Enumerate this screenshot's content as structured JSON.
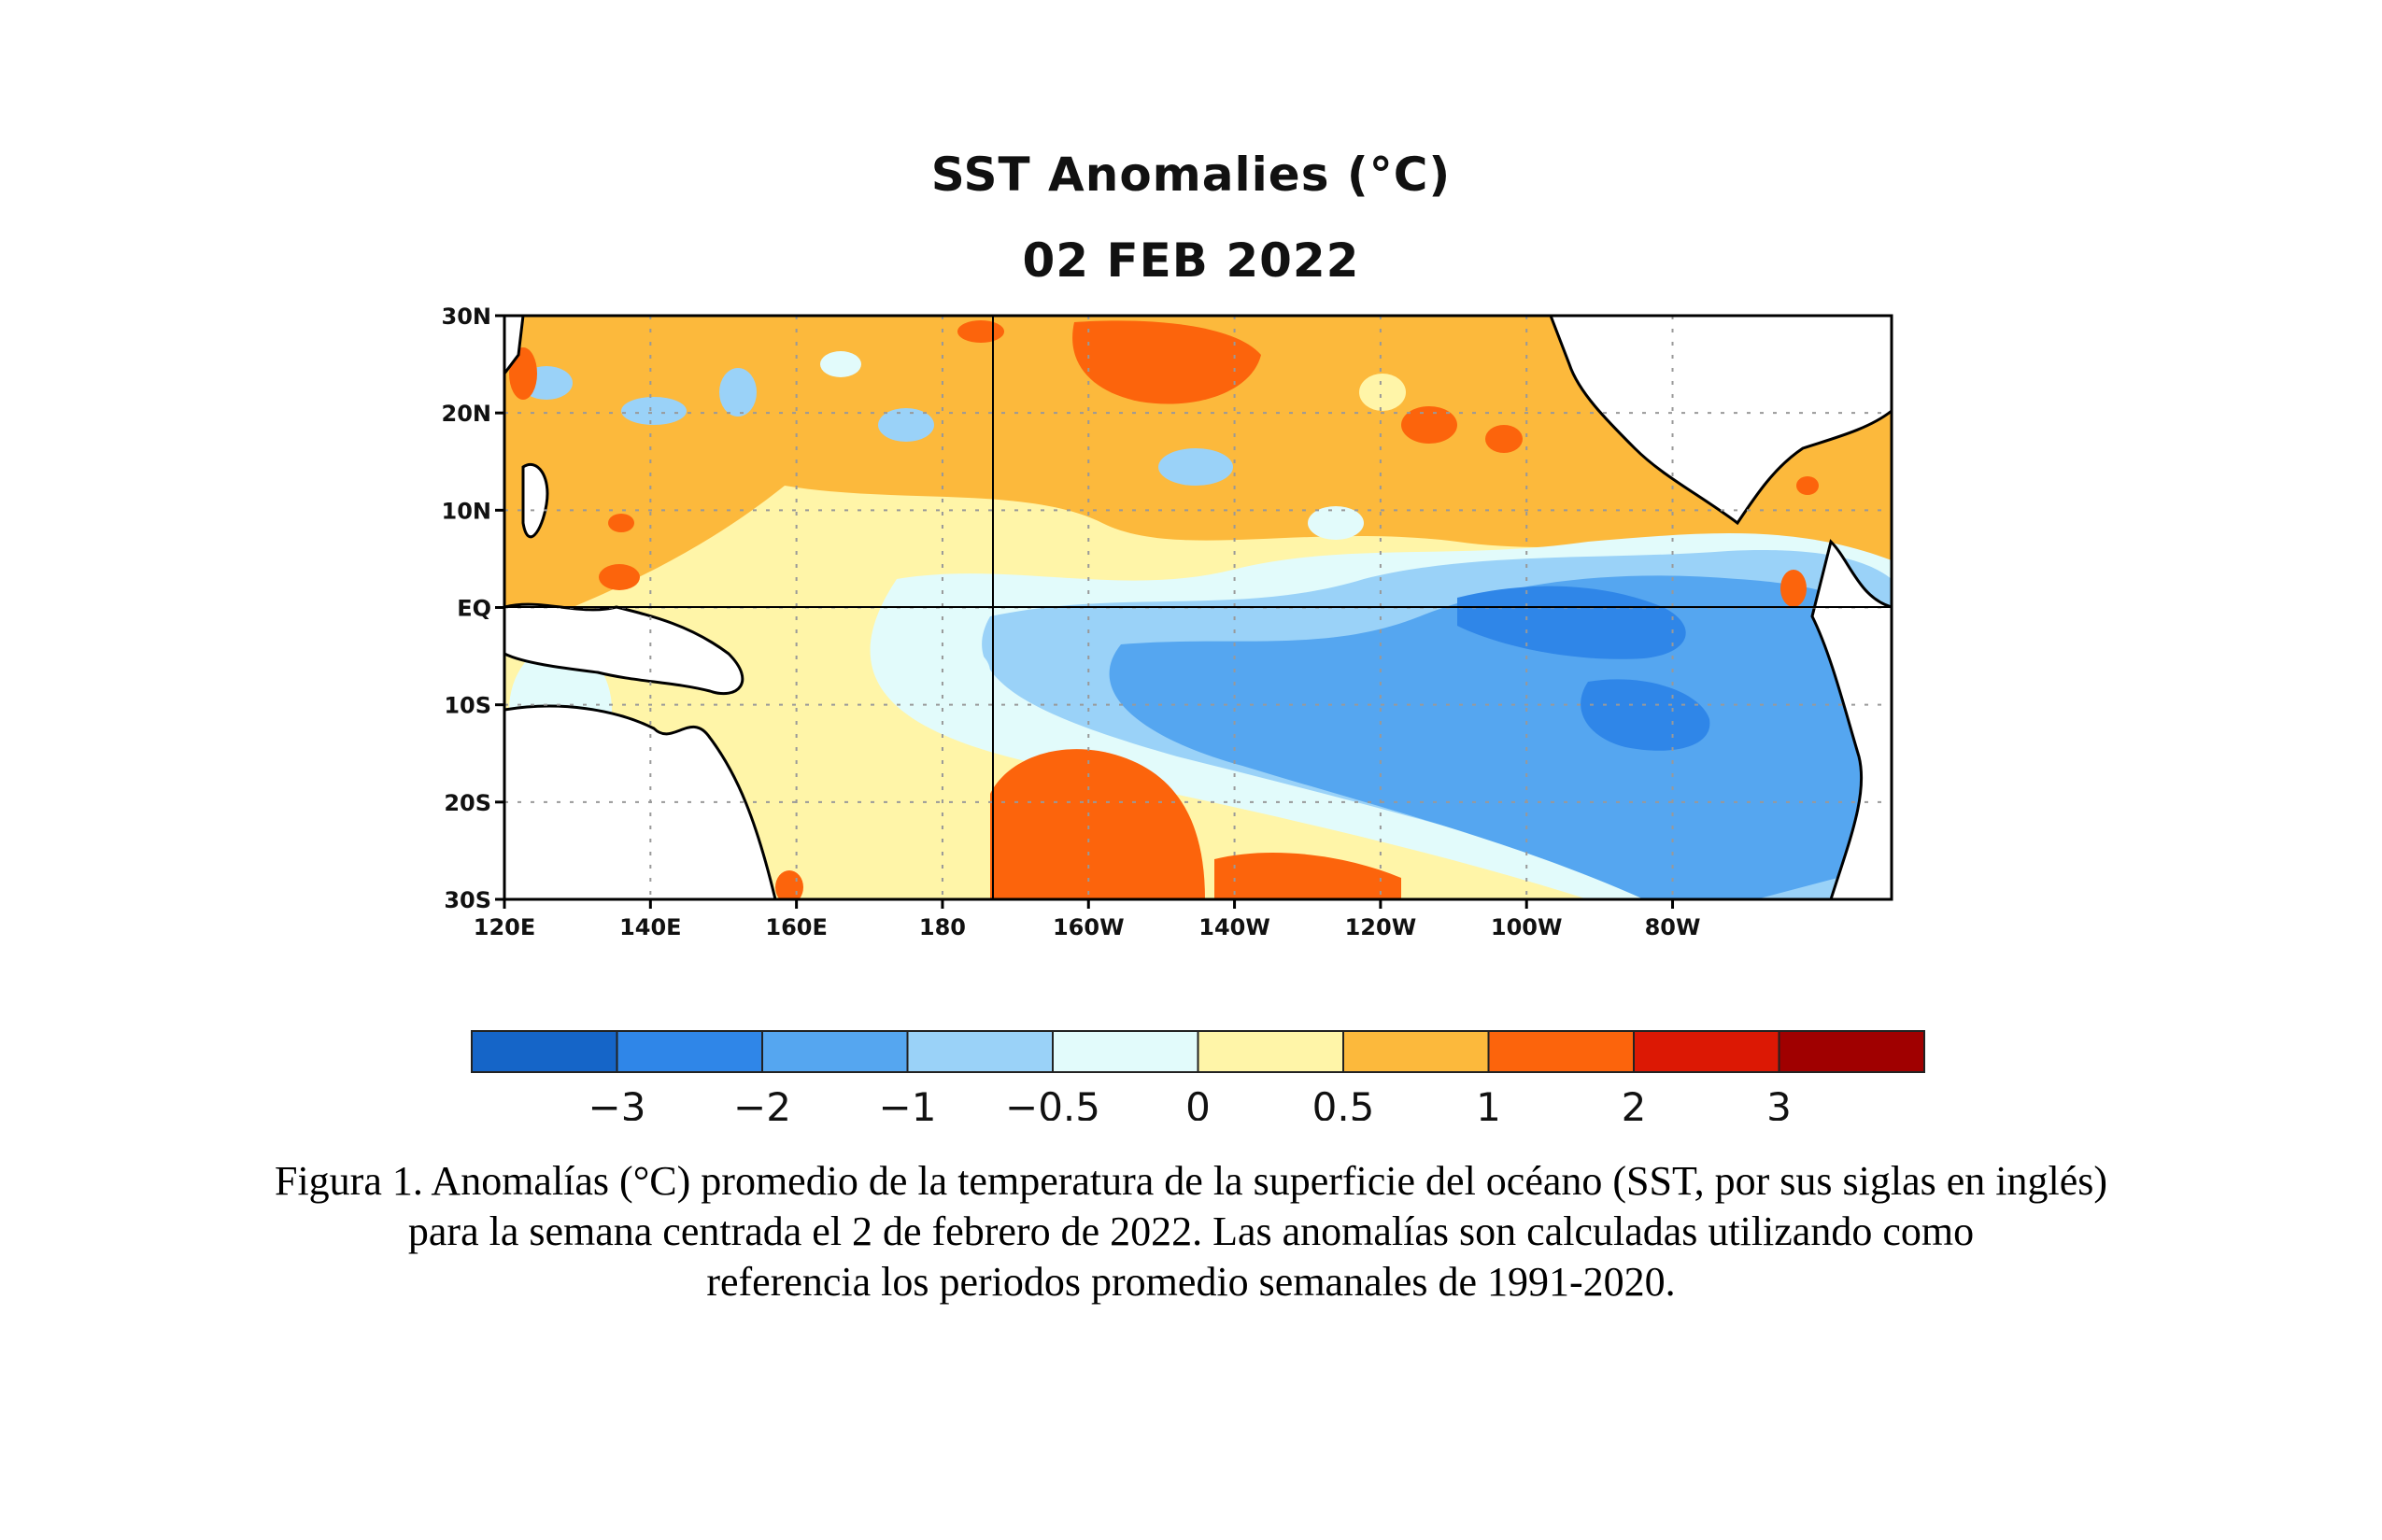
{
  "map": {
    "title": "SST Anomalies (°C)",
    "date": "02 FEB 2022",
    "lat_labels": [
      "30N",
      "20N",
      "10N",
      "EQ",
      "10S",
      "20S",
      "30S"
    ],
    "lon_labels": [
      "120E",
      "140E",
      "160E",
      "180",
      "160W",
      "140W",
      "120W",
      "100W",
      "80W"
    ]
  },
  "colorbar": {
    "colors": [
      "#1565c8",
      "#2f86e8",
      "#55a6f0",
      "#9ad2f8",
      "#e2fbfb",
      "#fff5a8",
      "#fcb93c",
      "#fc640c",
      "#dc1804",
      "#a00000"
    ],
    "tick_labels": [
      "−3",
      "−2",
      "−1",
      "−0.5",
      "0",
      "0.5",
      "1",
      "2",
      "3"
    ]
  },
  "caption": {
    "line1": "Figura 1. Anomalías (°C) promedio de la temperatura de la superficie del océano (SST, por sus siglas en inglés)",
    "line2": "para la semana centrada el 2 de febrero de 2022. Las anomalías son calculadas utilizando como",
    "line3": "referencia los periodos promedio semanales de 1991-2020."
  }
}
